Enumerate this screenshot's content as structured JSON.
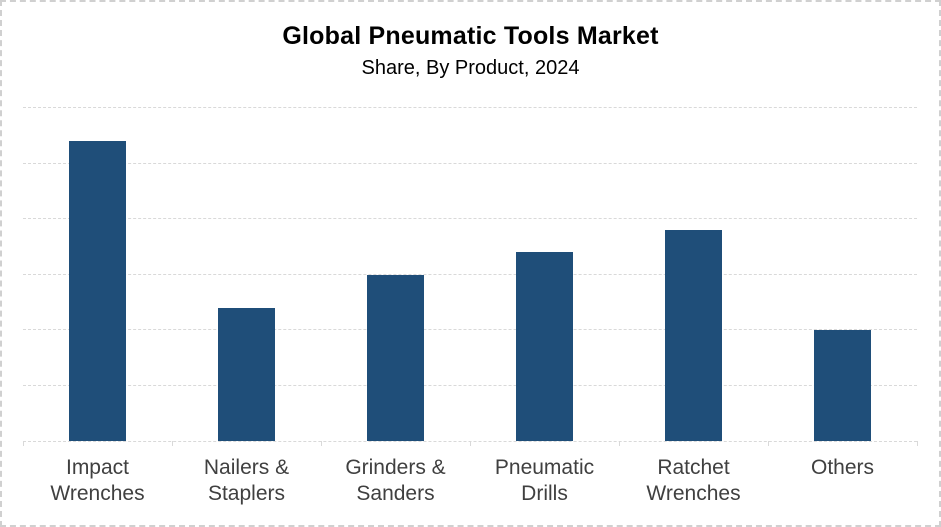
{
  "chart_data": {
    "type": "bar",
    "title": "Global Pneumatic Tools Market",
    "subtitle": "Share, By Product, 2024",
    "categories": [
      "Impact Wrenches",
      "Nailers & Staplers",
      "Grinders & Sanders",
      "Pneumatic Drills",
      "Ratchet Wrenches",
      "Others"
    ],
    "values": [
      27,
      12,
      15,
      17,
      19,
      10
    ],
    "xlabel": "",
    "ylabel": "",
    "ylim": [
      0,
      30
    ],
    "gridline_step": 5,
    "grid": true,
    "y_axis_tick_labels": "hidden",
    "legend_position": "none",
    "colors": {
      "bar": "#1F4E79",
      "gridline": "#D9D9D9",
      "axis": "#D9D9D9",
      "category_label": "#404040",
      "title": "#000000",
      "frame_border": "#D0D0D0",
      "background": "#FFFFFF"
    }
  }
}
